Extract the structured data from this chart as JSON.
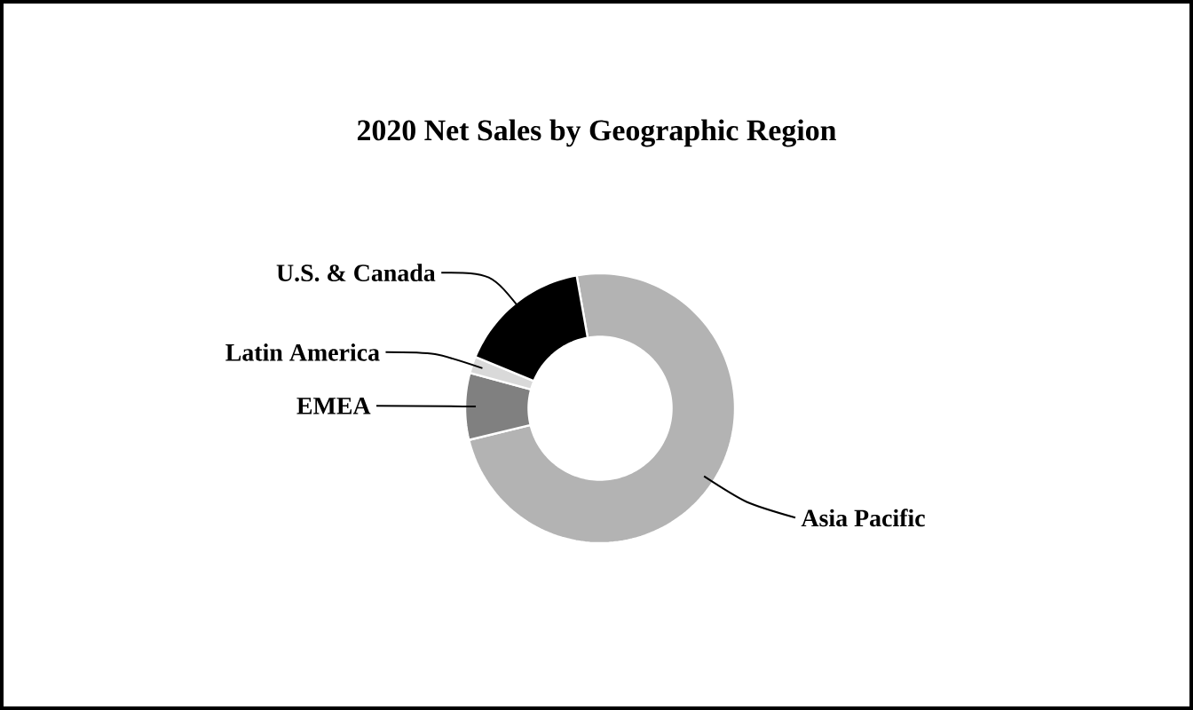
{
  "chart_data": {
    "type": "donut",
    "title": "2020 Net Sales by Geographic Region",
    "categories": [
      "Asia Pacific",
      "EMEA",
      "Latin America",
      "U.S. & Canada"
    ],
    "values": [
      74,
      8,
      2,
      16
    ],
    "colors": [
      "#b3b3b3",
      "#808080",
      "#d9d9d9",
      "#000000"
    ]
  }
}
